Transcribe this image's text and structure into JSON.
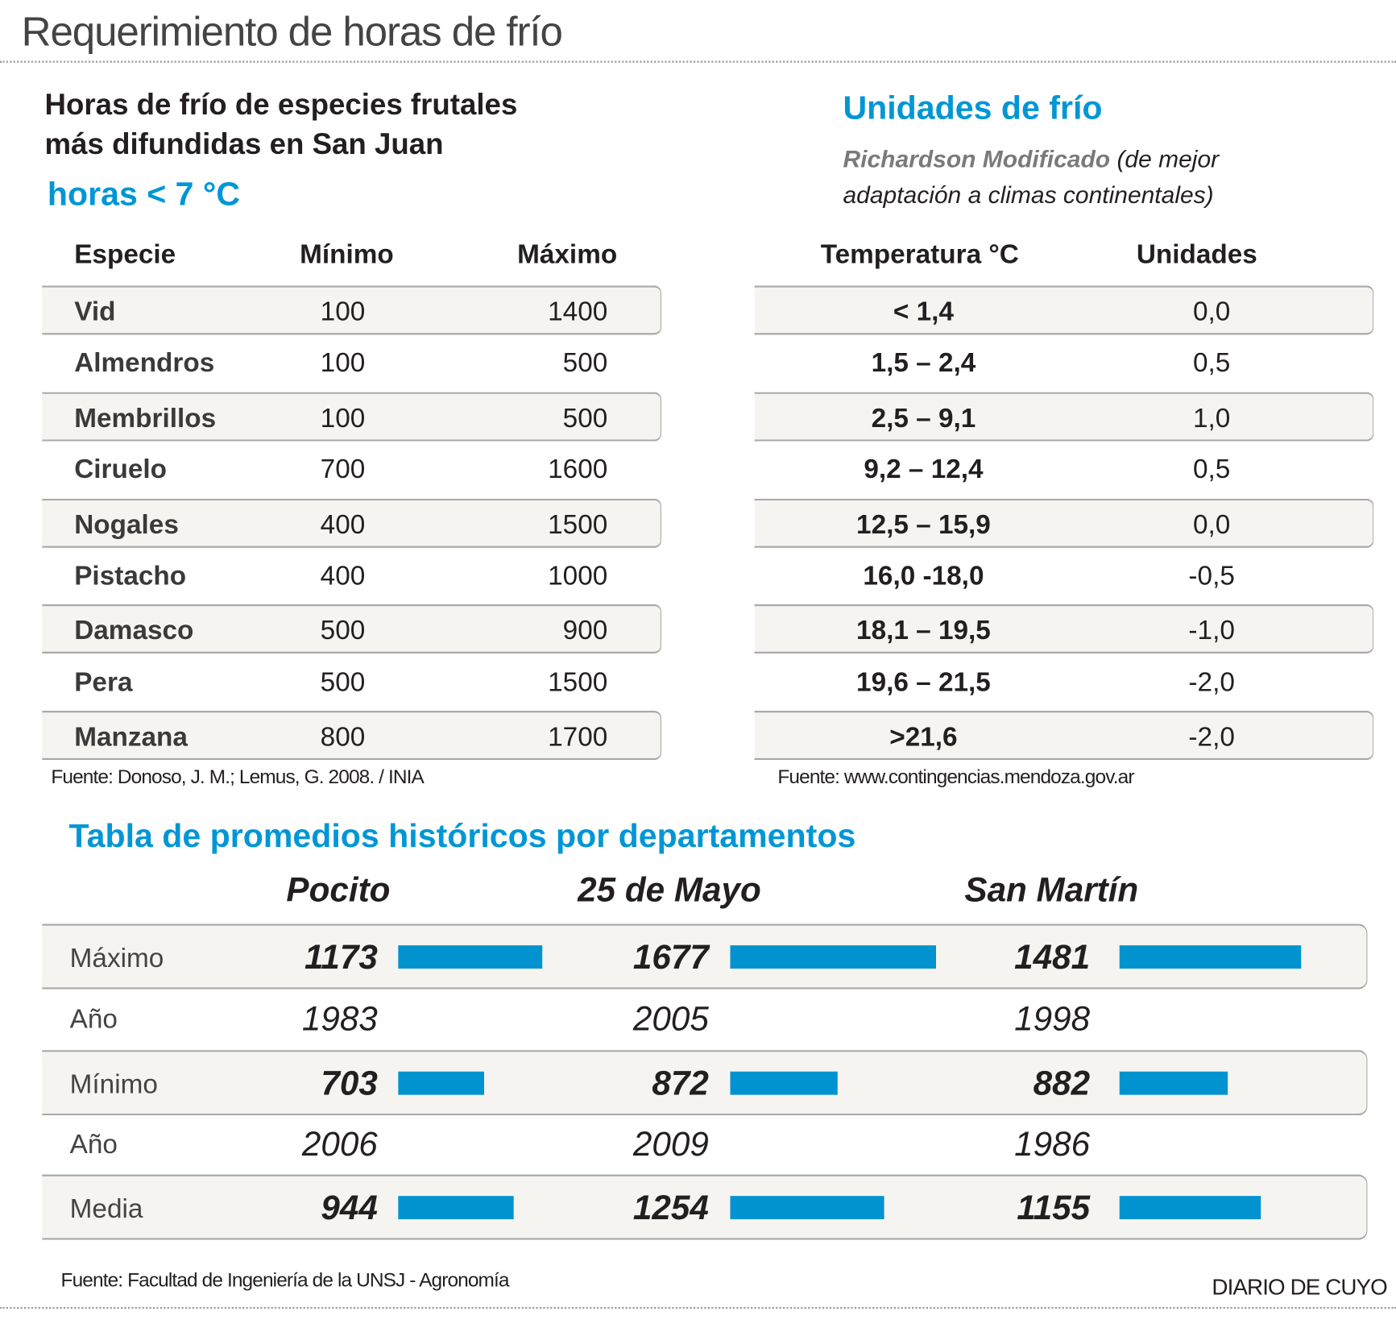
{
  "title": "Requerimiento de horas de frío",
  "left": {
    "heading_line1": "Horas de frío de especies frutales",
    "heading_line2": "más difundidas en San Juan",
    "subheading": "horas < 7 °C",
    "columns": [
      "Especie",
      "Mínimo",
      "Máximo"
    ],
    "rows": [
      {
        "especie": "Vid",
        "min": "100",
        "max": "1400"
      },
      {
        "especie": "Almendros",
        "min": "100",
        "max": "500"
      },
      {
        "especie": "Membrillos",
        "min": "100",
        "max": "500"
      },
      {
        "especie": "Ciruelo",
        "min": "700",
        "max": "1600"
      },
      {
        "especie": "Nogales",
        "min": "400",
        "max": "1500"
      },
      {
        "especie": "Pistacho",
        "min": "400",
        "max": "1000"
      },
      {
        "especie": "Damasco",
        "min": "500",
        "max": "900"
      },
      {
        "especie": "Pera",
        "min": "500",
        "max": "1500"
      },
      {
        "especie": "Manzana",
        "min": "800",
        "max": "1700"
      }
    ],
    "source": "Fuente: Donoso, J. M.; Lemus, G. 2008. / INIA"
  },
  "right": {
    "heading": "Unidades de frío",
    "method": "Richardson Modificado",
    "method_note_1": " (de mejor",
    "method_note_2": "adaptación a climas continentales)",
    "columns": [
      "Temperatura °C",
      "Unidades"
    ],
    "rows": [
      {
        "temp": "< 1,4",
        "units": "0,0"
      },
      {
        "temp": "1,5 – 2,4",
        "units": "0,5"
      },
      {
        "temp": "2,5 – 9,1",
        "units": "1,0"
      },
      {
        "temp": "9,2 – 12,4",
        "units": "0,5"
      },
      {
        "temp": "12,5 – 15,9",
        "units": "0,0"
      },
      {
        "temp": "16,0 -18,0",
        "units": "-0,5"
      },
      {
        "temp": "18,1 – 19,5",
        "units": "-1,0"
      },
      {
        "temp": "19,6 – 21,5",
        "units": "-2,0"
      },
      {
        "temp": ">21,6",
        "units": "-2,0"
      }
    ],
    "source": "Fuente: www.contingencias.mendoza.gov.ar"
  },
  "bottom": {
    "heading": "Tabla de promedios históricos por departamentos",
    "departments": [
      "Pocito",
      "25 de Mayo",
      "San Martín"
    ],
    "rows": [
      {
        "label": "Máximo",
        "values": [
          "1173",
          "1677",
          "1481"
        ],
        "bars": [
          1173,
          1677,
          1481
        ]
      },
      {
        "label": "Año",
        "values": [
          "1983",
          "2005",
          "1998"
        ]
      },
      {
        "label": "Mínimo",
        "values": [
          "703",
          "872",
          "882"
        ],
        "bars": [
          703,
          872,
          882
        ]
      },
      {
        "label": "Año",
        "values": [
          "2006",
          "2009",
          "1986"
        ]
      },
      {
        "label": "Media",
        "values": [
          "944",
          "1254",
          "1155"
        ],
        "bars": [
          944,
          1254,
          1155
        ]
      }
    ],
    "bar_color": "#0093d0",
    "source": "Fuente: Facultad de Ingeniería de la UNSJ - Agronomía"
  },
  "credit": "DIARIO DE CUYO",
  "colors": {
    "accent": "#0096d6",
    "band": "#f5f4f0"
  }
}
